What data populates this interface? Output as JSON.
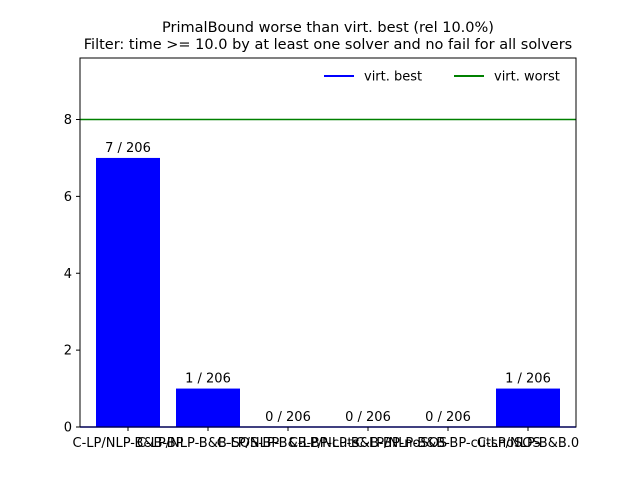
{
  "chart_data": {
    "type": "bar",
    "title": "PrimalBound worse than virt. best (rel 10.0%)",
    "subtitle": "Filter: time >= 10.0 by at least one solver and no fail for all solvers",
    "xlabel": "",
    "ylabel": "",
    "ylim": [
      0,
      9.6
    ],
    "yticks": [
      0,
      2,
      4,
      6,
      8
    ],
    "grid": false,
    "legend_position": "top-right",
    "categories": [
      "C-LP/NLP-B&B-BP",
      "C-LP/NLP-B&B-SOS-BP",
      "C-LP/NLP-B&B-BP-cuts",
      "C-LP/NLP-B&B-BP-noSOS",
      "C-LP/NLP-B&B-BP-cutsnoSOS",
      "C-LP/NLP-B&B.0"
    ],
    "values": [
      7,
      1,
      0,
      0,
      0,
      1
    ],
    "bar_labels": [
      "7 / 206",
      "1 / 206",
      "0 / 206",
      "0 / 206",
      "0 / 206",
      "1 / 206"
    ],
    "bar_color": "#0000ff",
    "lines": [
      {
        "name": "virt. best",
        "y": 0,
        "color": "#0000ff"
      },
      {
        "name": "virt. worst",
        "y": 8,
        "color": "#008000"
      }
    ]
  }
}
